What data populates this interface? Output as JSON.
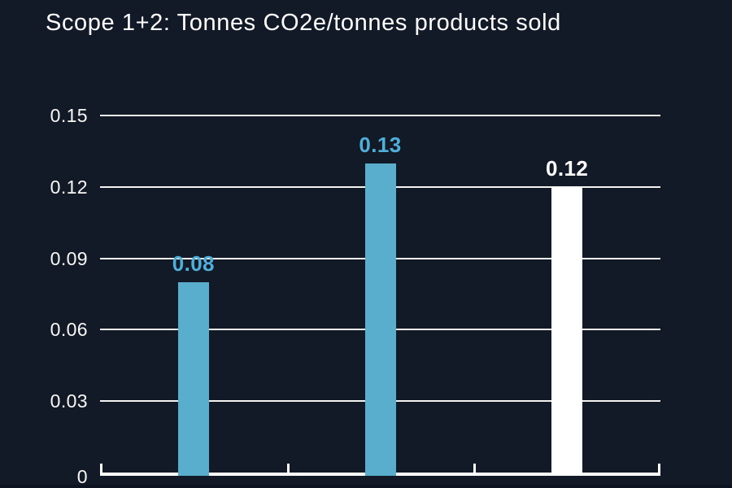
{
  "page": {
    "background_color": "#131a27",
    "bottom_strip_color": "#0d1320"
  },
  "chart_data": {
    "type": "bar",
    "title": "Scope 1+2: Tonnes CO2e/tonnes products sold",
    "title_color": "#ffffff",
    "categories": [
      "",
      "",
      ""
    ],
    "values": [
      0.08,
      0.13,
      0.12
    ],
    "bar_value_labels": [
      "0.08",
      "0.13",
      "0.12"
    ],
    "bar_colors": [
      "#5aaecd",
      "#5aaecd",
      "#ffffff"
    ],
    "bar_label_colors": [
      "#4fafd9",
      "#4fafd9",
      "#ffffff"
    ],
    "xlabel": "",
    "ylabel": "",
    "ylim": [
      0,
      0.15
    ],
    "yticks": [
      0,
      0.03,
      0.06,
      0.09,
      0.12,
      0.15
    ],
    "ytick_labels": [
      "0",
      "0.03",
      "0.06",
      "0.09",
      "0.12",
      "0.15"
    ],
    "ytick_label_color": "#f8f7f4",
    "grid": true,
    "gridline_color": "#f5f3ef",
    "axis_color": "#ffffff",
    "legend": "none"
  }
}
